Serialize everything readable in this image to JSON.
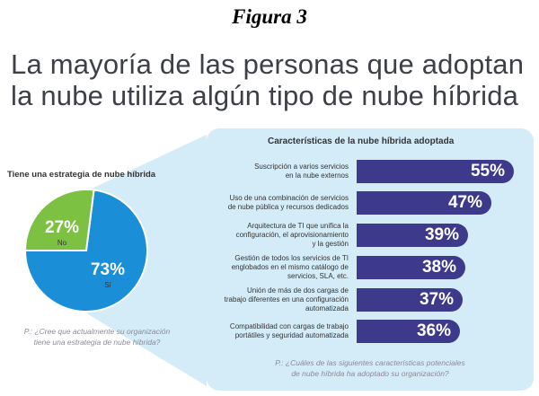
{
  "figure_caption": "Figura 3",
  "headline": {
    "line1": "La mayoría de las personas que adoptan",
    "line2": "la nube utiliza algún tipo de nube híbrida"
  },
  "colors": {
    "pie_yes": "#1a8fd8",
    "pie_no": "#7cc142",
    "bars": "#3d3a8c",
    "panel": "#d4ecf8"
  },
  "chart_data": [
    {
      "type": "pie",
      "title": "Tiene una estrategia de nube híbrida",
      "slices": [
        {
          "label": "Sí",
          "value": 73,
          "display": "73%"
        },
        {
          "label": "No",
          "value": 27,
          "display": "27%"
        }
      ],
      "question": [
        "P.: ¿Cree que actualmente su organización",
        "tiene una estrategia de nube híbrida?"
      ]
    },
    {
      "type": "bar",
      "title": "Características de la nube híbrida adoptada",
      "categories": [
        [
          "Suscripción a varios servicios",
          "en la nube externos"
        ],
        [
          "Uso de una combinación de servicios",
          "de nube pública y recursos dedicados"
        ],
        [
          "Arquitectura de TI que unifica la",
          "configuración, el aprovisionamiento",
          "y la gestión"
        ],
        [
          "Gestión de todos los servicios de TI",
          "englobados en el mismo catálogo de",
          "servicios, SLA, etc."
        ],
        [
          "Unión de más de dos cargas de",
          "trabajo diferentes en una configuración",
          "automatizada"
        ],
        [
          "Compatibilidad con cargas de trabajo",
          "portátiles y seguridad automatizada"
        ]
      ],
      "values": [
        55,
        47,
        39,
        38,
        37,
        36
      ],
      "value_labels": [
        "55%",
        "47%",
        "39%",
        "38%",
        "37%",
        "36%"
      ],
      "question": [
        "P.: ¿Cuáles de las siguientes características potenciales",
        "de nube híbrida ha adoptado su organización?"
      ]
    }
  ]
}
